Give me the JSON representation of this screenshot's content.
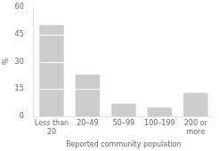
{
  "chart_data": {
    "type": "bar",
    "categories": [
      "Less than\n20",
      "20–49",
      "50–99",
      "100–199",
      "200 or\nmore"
    ],
    "values": [
      50,
      23,
      7,
      5,
      13
    ],
    "color": "#cccccc",
    "ylabel": "%",
    "xlabel": "Reported community population",
    "ylim": [
      0,
      60
    ],
    "yticks": [
      0,
      15,
      30,
      45,
      60
    ],
    "grid": false
  }
}
